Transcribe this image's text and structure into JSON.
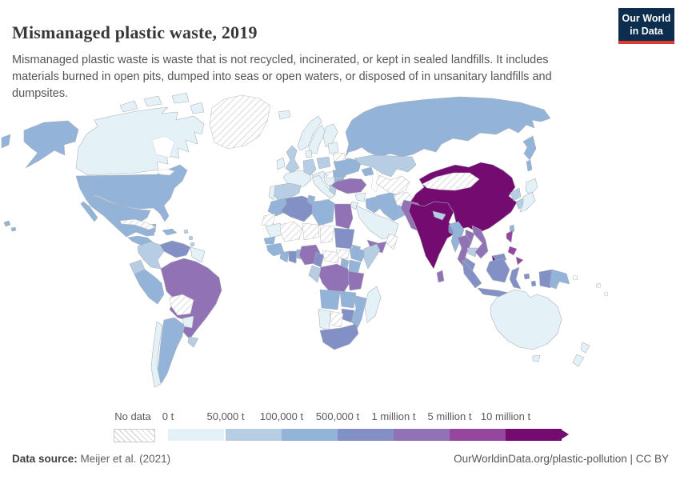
{
  "header": {
    "title": "Mismanaged plastic waste, 2019",
    "subtitle": "Mismanaged plastic waste is waste that is not recycled, incinerated, or kept in sealed landfills. It includes materials burned in open pits, dumped into seas or open waters, or disposed of in unsanitary landfills and dumpsites.",
    "logo": {
      "line1": "Our World",
      "line2": "in Data",
      "bg": "#0d2d4e",
      "accent": "#d93a34"
    }
  },
  "legend": {
    "no_data_label": "No data",
    "stops": [
      "0 t",
      "50,000 t",
      "100,000 t",
      "500,000 t",
      "1 million t",
      "5 million t",
      "10 million t"
    ],
    "colors": [
      "#e4f1f7",
      "#b7cde3",
      "#94b3d8",
      "#8290c5",
      "#9172b5",
      "#9547a0",
      "#730b71"
    ],
    "no_data_border": "#bdbdbd"
  },
  "footer": {
    "source_label": "Data source:",
    "source_value": "Meijer et al. (2021)",
    "credit": "OurWorldinData.org/plastic-pollution | CC BY"
  },
  "chart_data": {
    "type": "choropleth",
    "title": "Mismanaged plastic waste, 2019",
    "unit": "tonnes per year",
    "bin_labels": [
      "0–50,000 t",
      "50,000–100,000 t",
      "100,000–500,000 t",
      "500,000 t–1 million t",
      "1–5 million t",
      "5–10 million t",
      "≥10 million t"
    ],
    "no_data_label": "No data",
    "countries": [
      {
        "id": "canada",
        "name": "Canada",
        "bin": 0
      },
      {
        "id": "usa",
        "name": "United States",
        "bin": 2
      },
      {
        "id": "greenland",
        "name": "Greenland",
        "bin": -1
      },
      {
        "id": "mexico",
        "name": "Mexico",
        "bin": 2
      },
      {
        "id": "central-america",
        "name": "Central America",
        "bin": 2
      },
      {
        "id": "cuba",
        "name": "Cuba",
        "bin": -1
      },
      {
        "id": "jamaica",
        "name": "Jamaica",
        "bin": 2
      },
      {
        "id": "hispaniola",
        "name": "Haiti & Dominican Republic",
        "bin": 2
      },
      {
        "id": "antilles",
        "name": "Lesser Antilles",
        "bin": 1
      },
      {
        "id": "colombia",
        "name": "Colombia",
        "bin": 1
      },
      {
        "id": "venezuela",
        "name": "Venezuela",
        "bin": 3
      },
      {
        "id": "guyanas",
        "name": "Guyana, Suriname & French Guiana",
        "bin": 0
      },
      {
        "id": "ecuador",
        "name": "Ecuador",
        "bin": 1
      },
      {
        "id": "peru",
        "name": "Peru",
        "bin": 2
      },
      {
        "id": "brazil",
        "name": "Brazil",
        "bin": 4
      },
      {
        "id": "bolivia",
        "name": "Bolivia",
        "bin": -1
      },
      {
        "id": "paraguay",
        "name": "Paraguay",
        "bin": 0
      },
      {
        "id": "uruguay",
        "name": "Uruguay",
        "bin": 1
      },
      {
        "id": "argentina",
        "name": "Argentina",
        "bin": 2
      },
      {
        "id": "chile",
        "name": "Chile",
        "bin": 0
      },
      {
        "id": "iceland",
        "name": "Iceland",
        "bin": 0
      },
      {
        "id": "norway",
        "name": "Norway",
        "bin": 0
      },
      {
        "id": "sweden",
        "name": "Sweden",
        "bin": 0
      },
      {
        "id": "finland",
        "name": "Finland",
        "bin": 0
      },
      {
        "id": "denmark",
        "name": "Denmark",
        "bin": 0
      },
      {
        "id": "uk",
        "name": "United Kingdom",
        "bin": 1
      },
      {
        "id": "ireland",
        "name": "Ireland",
        "bin": 0
      },
      {
        "id": "france",
        "name": "France",
        "bin": 0
      },
      {
        "id": "spain",
        "name": "Spain",
        "bin": 1
      },
      {
        "id": "portugal",
        "name": "Portugal",
        "bin": 0
      },
      {
        "id": "germany",
        "name": "Germany",
        "bin": 1
      },
      {
        "id": "poland",
        "name": "Poland",
        "bin": 1
      },
      {
        "id": "central-europe",
        "name": "Central Europe",
        "bin": 0
      },
      {
        "id": "italy",
        "name": "Italy",
        "bin": 0
      },
      {
        "id": "balkans",
        "name": "Balkans",
        "bin": 0
      },
      {
        "id": "balkans-nodata",
        "name": "Western Balkans",
        "bin": -1
      },
      {
        "id": "greece",
        "name": "Greece",
        "bin": 1
      },
      {
        "id": "romania",
        "name": "Romania",
        "bin": 2
      },
      {
        "id": "bulgaria",
        "name": "Bulgaria",
        "bin": 2
      },
      {
        "id": "ukraine",
        "name": "Ukraine",
        "bin": 2
      },
      {
        "id": "belarus",
        "name": "Belarus",
        "bin": -1
      },
      {
        "id": "baltics",
        "name": "Baltic states",
        "bin": 0
      },
      {
        "id": "russia",
        "name": "Russia",
        "bin": 2
      },
      {
        "id": "kazakhstan",
        "name": "Kazakhstan",
        "bin": 1
      },
      {
        "id": "central-asia",
        "name": "Central Asia",
        "bin": -1
      },
      {
        "id": "caucasus",
        "name": "Caucasus",
        "bin": 2
      },
      {
        "id": "turkey",
        "name": "Turkey",
        "bin": 4
      },
      {
        "id": "syria",
        "name": "Syria",
        "bin": 0
      },
      {
        "id": "jordan-israel",
        "name": "Jordan & Israel",
        "bin": 0
      },
      {
        "id": "iraq",
        "name": "Iraq",
        "bin": 2
      },
      {
        "id": "iran",
        "name": "Iran",
        "bin": 2
      },
      {
        "id": "afghanistan",
        "name": "Afghanistan",
        "bin": -1
      },
      {
        "id": "saudi-arabia",
        "name": "Saudi Arabia",
        "bin": 0
      },
      {
        "id": "yemen",
        "name": "Yemen",
        "bin": 4
      },
      {
        "id": "oman",
        "name": "Oman",
        "bin": -1
      },
      {
        "id": "morocco",
        "name": "Morocco",
        "bin": 2
      },
      {
        "id": "western-sahara",
        "name": "Western Sahara",
        "bin": -1
      },
      {
        "id": "algeria",
        "name": "Algeria",
        "bin": 3
      },
      {
        "id": "tunisia",
        "name": "Tunisia",
        "bin": 2
      },
      {
        "id": "libya",
        "name": "Libya",
        "bin": 2
      },
      {
        "id": "egypt",
        "name": "Egypt",
        "bin": 4
      },
      {
        "id": "mauritania",
        "name": "Mauritania",
        "bin": 0
      },
      {
        "id": "mali",
        "name": "Mali",
        "bin": -1
      },
      {
        "id": "niger",
        "name": "Niger",
        "bin": -1
      },
      {
        "id": "chad",
        "name": "Chad",
        "bin": -1
      },
      {
        "id": "sudan",
        "name": "Sudan",
        "bin": 3
      },
      {
        "id": "eritrea",
        "name": "Eritrea",
        "bin": 2
      },
      {
        "id": "senegal",
        "name": "Senegal",
        "bin": 2
      },
      {
        "id": "guinea-region",
        "name": "Guinea region",
        "bin": 2
      },
      {
        "id": "ivory-coast",
        "name": "Côte d'Ivoire",
        "bin": 2
      },
      {
        "id": "ghana",
        "name": "Ghana",
        "bin": 3
      },
      {
        "id": "benin",
        "name": "Benin & Togo",
        "bin": 2
      },
      {
        "id": "nigeria",
        "name": "Nigeria",
        "bin": 4
      },
      {
        "id": "cameroon",
        "name": "Cameroon",
        "bin": 3
      },
      {
        "id": "car",
        "name": "Central African Republic",
        "bin": -1
      },
      {
        "id": "south-sudan",
        "name": "South Sudan",
        "bin": -1
      },
      {
        "id": "ethiopia",
        "name": "Ethiopia",
        "bin": 2
      },
      {
        "id": "somalia",
        "name": "Somalia",
        "bin": 1
      },
      {
        "id": "kenya",
        "name": "Kenya",
        "bin": 2
      },
      {
        "id": "uganda",
        "name": "Uganda",
        "bin": 2
      },
      {
        "id": "drc",
        "name": "Democratic Republic of Congo",
        "bin": 4
      },
      {
        "id": "congo-gabon",
        "name": "Congo & Gabon",
        "bin": 1
      },
      {
        "id": "tanzania",
        "name": "Tanzania",
        "bin": 4
      },
      {
        "id": "angola",
        "name": "Angola",
        "bin": 2
      },
      {
        "id": "zambia",
        "name": "Zambia",
        "bin": 2
      },
      {
        "id": "mozambique",
        "name": "Mozambique",
        "bin": 2
      },
      {
        "id": "zimbabwe",
        "name": "Zimbabwe",
        "bin": 3
      },
      {
        "id": "botswana",
        "name": "Botswana",
        "bin": -1
      },
      {
        "id": "namibia",
        "name": "Namibia",
        "bin": 0
      },
      {
        "id": "south-africa",
        "name": "South Africa",
        "bin": 3
      },
      {
        "id": "madagascar",
        "name": "Madagascar",
        "bin": 0
      },
      {
        "id": "pakistan",
        "name": "Pakistan",
        "bin": 4
      },
      {
        "id": "india",
        "name": "India",
        "bin": 6
      },
      {
        "id": "nepal",
        "name": "Nepal",
        "bin": 1
      },
      {
        "id": "bangladesh",
        "name": "Bangladesh",
        "bin": 3
      },
      {
        "id": "sri-lanka",
        "name": "Sri Lanka",
        "bin": 4
      },
      {
        "id": "china",
        "name": "China",
        "bin": 6
      },
      {
        "id": "mongolia",
        "name": "Mongolia",
        "bin": -1
      },
      {
        "id": "taiwan",
        "name": "Taiwan",
        "bin": 2
      },
      {
        "id": "north-korea",
        "name": "North Korea",
        "bin": 1
      },
      {
        "id": "south-korea",
        "name": "South Korea",
        "bin": 1
      },
      {
        "id": "japan",
        "name": "Japan",
        "bin": 0
      },
      {
        "id": "myanmar",
        "name": "Myanmar",
        "bin": 2
      },
      {
        "id": "thailand",
        "name": "Thailand",
        "bin": 4
      },
      {
        "id": "laos",
        "name": "Laos",
        "bin": 4
      },
      {
        "id": "cambodia",
        "name": "Cambodia",
        "bin": 1
      },
      {
        "id": "vietnam",
        "name": "Vietnam",
        "bin": 4
      },
      {
        "id": "malaysia",
        "name": "Malaysia",
        "bin": 3
      },
      {
        "id": "indonesia",
        "name": "Indonesia",
        "bin": 3
      },
      {
        "id": "png",
        "name": "Papua New Guinea",
        "bin": 2
      },
      {
        "id": "philippines",
        "name": "Philippines",
        "bin": 5
      },
      {
        "id": "australia",
        "name": "Australia",
        "bin": 0
      },
      {
        "id": "new-zealand",
        "name": "New Zealand",
        "bin": 0
      },
      {
        "id": "pacific-islands",
        "name": "Pacific islands",
        "bin": -1
      }
    ]
  }
}
